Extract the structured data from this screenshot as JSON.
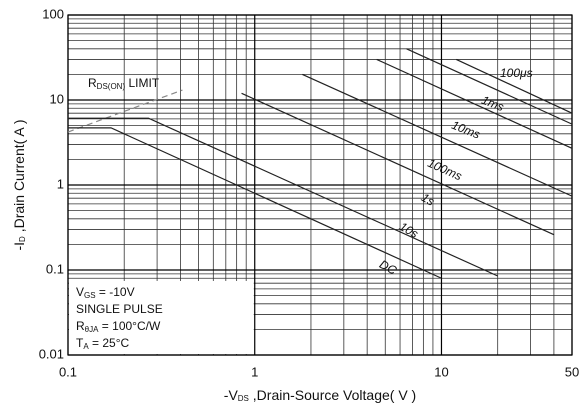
{
  "chart_data": {
    "type": "line",
    "log_x": true,
    "log_y": true,
    "grid": true,
    "xlim": [
      0.1,
      50
    ],
    "ylim": [
      0.01,
      100
    ],
    "xticks": [
      0.1,
      1,
      10,
      50
    ],
    "yticks": [
      0.01,
      0.1,
      1,
      10,
      100
    ],
    "x_minor_grid": [
      0.2,
      0.3,
      0.4,
      0.5,
      0.6,
      0.7,
      0.8,
      0.9,
      2,
      3,
      4,
      5,
      6,
      7,
      8,
      9,
      20,
      30,
      40
    ],
    "y_minor_grid": [
      0.02,
      0.03,
      0.04,
      0.05,
      0.06,
      0.07,
      0.08,
      0.09,
      0.2,
      0.3,
      0.4,
      0.5,
      0.6,
      0.7,
      0.8,
      0.9,
      2,
      3,
      4,
      5,
      6,
      7,
      8,
      9,
      20,
      30,
      40,
      50,
      60,
      70,
      80,
      90
    ],
    "xlabel": [
      {
        "text": "-V"
      },
      {
        "text": "DS",
        "sub": true
      },
      {
        "text": " ,Drain-Source Voltage( V )"
      }
    ],
    "ylabel": [
      {
        "text": "-I"
      },
      {
        "text": "D",
        "sub": true
      },
      {
        "text": " ,Drain Current( A )"
      }
    ],
    "color": "#222222",
    "rds_limit": {
      "label": [
        {
          "text": "R"
        },
        {
          "text": "DS(ON)",
          "sub": true
        },
        {
          "text": " LIMIT"
        }
      ],
      "x": [
        0.1,
        0.41
      ],
      "values": [
        4.2,
        13.1
      ],
      "color": "#888888"
    },
    "series": [
      {
        "name": "100μs",
        "x": [
          12,
          50
        ],
        "values": [
          30,
          7
        ]
      },
      {
        "name": "1ms",
        "x": [
          6.5,
          50
        ],
        "values": [
          40,
          5.2
        ]
      },
      {
        "name": "10ms",
        "x": [
          4.5,
          50
        ],
        "values": [
          30,
          2.7
        ]
      },
      {
        "name": "100ms",
        "x": [
          1.8,
          50
        ],
        "values": [
          20,
          0.74
        ]
      },
      {
        "name": "1s",
        "x": [
          0.85,
          40
        ],
        "values": [
          12,
          0.26
        ]
      },
      {
        "name": "10s",
        "x": [
          0.1,
          0.27,
          20
        ],
        "values": [
          6.1,
          6.1,
          0.085
        ]
      },
      {
        "name": "DC",
        "x": [
          0.1,
          0.17,
          10
        ],
        "values": [
          4.7,
          4.7,
          0.08
        ]
      }
    ],
    "notes": [
      [
        {
          "text": "V"
        },
        {
          "text": "GS",
          "sub": true
        },
        {
          "text": " = -10V"
        }
      ],
      [
        {
          "text": "SINGLE PULSE"
        }
      ],
      [
        {
          "text": "R"
        },
        {
          "text": "θJA",
          "sub": true
        },
        {
          "text": " = 100°C/W"
        }
      ],
      [
        {
          "text": "T"
        },
        {
          "text": "A",
          "sub": true
        },
        {
          "text": " = 25°C"
        }
      ]
    ]
  }
}
